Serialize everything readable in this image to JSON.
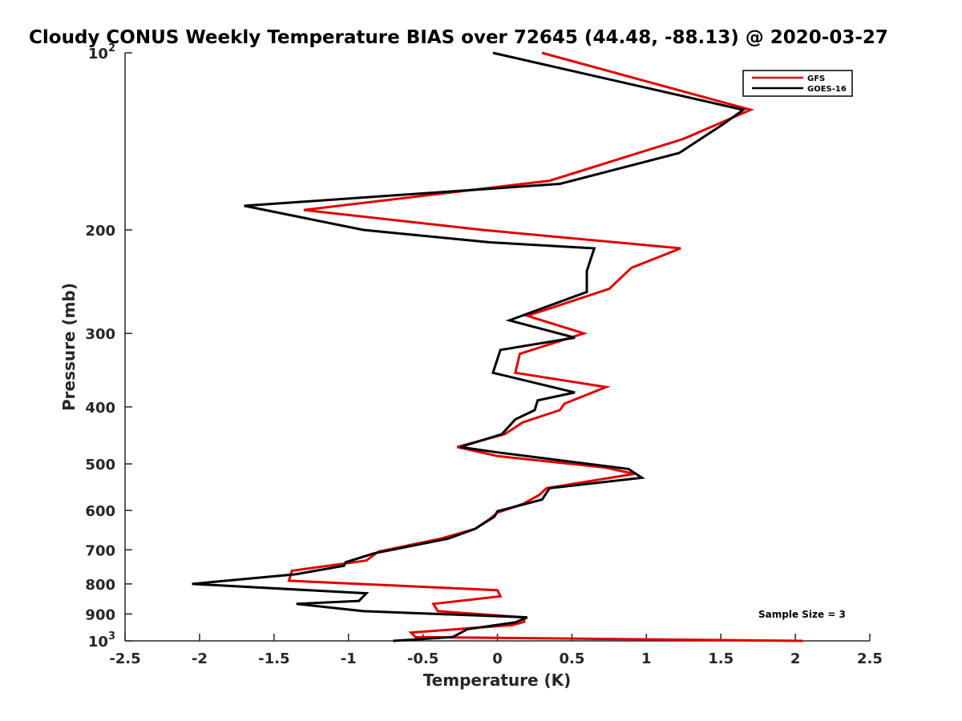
{
  "chart_data": {
    "type": "line",
    "title": "Cloudy CONUS Weekly Temperature BIAS over 72645 (44.48, -88.13) @ 2020-03-27",
    "xlabel": "Temperature (K)",
    "ylabel": "Pressure (mb)",
    "xlim": [
      -2.5,
      2.5
    ],
    "ylim": [
      100,
      1000
    ],
    "yscale": "log",
    "y_reversed": true,
    "grid": false,
    "legend_placement": "top-right",
    "x_ticks": [
      "-2.5",
      "-2",
      "-1.5",
      "-1",
      "-0.5",
      "0",
      "0.5",
      "1",
      "1.5",
      "2",
      "2.5"
    ],
    "y_ticks": [
      {
        "value": 100,
        "label": "10",
        "sup": "2"
      },
      {
        "value": 200,
        "label": "200",
        "sup": ""
      },
      {
        "value": 300,
        "label": "300",
        "sup": ""
      },
      {
        "value": 400,
        "label": "400",
        "sup": ""
      },
      {
        "value": 500,
        "label": "500",
        "sup": ""
      },
      {
        "value": 600,
        "label": "600",
        "sup": ""
      },
      {
        "value": 700,
        "label": "700",
        "sup": ""
      },
      {
        "value": 800,
        "label": "800",
        "sup": ""
      },
      {
        "value": 900,
        "label": "900",
        "sup": ""
      },
      {
        "value": 1000,
        "label": "10",
        "sup": "3"
      }
    ],
    "series": [
      {
        "name": "GFS",
        "color": "#e00000",
        "points": [
          [
            0.3,
            100
          ],
          [
            1.7,
            125
          ],
          [
            1.25,
            140
          ],
          [
            0.35,
            165
          ],
          [
            -1.3,
            185
          ],
          [
            -0.1,
            200
          ],
          [
            1.23,
            215
          ],
          [
            0.9,
            232
          ],
          [
            0.75,
            252
          ],
          [
            0.2,
            280
          ],
          [
            0.58,
            300
          ],
          [
            0.15,
            325
          ],
          [
            0.12,
            350
          ],
          [
            0.73,
            370
          ],
          [
            0.45,
            395
          ],
          [
            0.42,
            405
          ],
          [
            0.17,
            425
          ],
          [
            0.05,
            445
          ],
          [
            -0.27,
            468
          ],
          [
            0.0,
            485
          ],
          [
            0.72,
            507
          ],
          [
            0.92,
            520
          ],
          [
            0.33,
            550
          ],
          [
            0.28,
            565
          ],
          [
            0.17,
            585
          ],
          [
            0.0,
            605
          ],
          [
            -0.05,
            620
          ],
          [
            -0.15,
            645
          ],
          [
            -0.38,
            670
          ],
          [
            -0.8,
            705
          ],
          [
            -0.88,
            730
          ],
          [
            -1.38,
            760
          ],
          [
            -1.4,
            790
          ],
          [
            0.0,
            820
          ],
          [
            0.02,
            840
          ],
          [
            -0.43,
            865
          ],
          [
            -0.4,
            890
          ],
          [
            0.18,
            912
          ],
          [
            0.18,
            928
          ],
          [
            0.1,
            940
          ],
          [
            -0.58,
            968
          ],
          [
            -0.55,
            985
          ],
          [
            2.05,
            1000
          ]
        ]
      },
      {
        "name": "GOES-16",
        "color": "#000000",
        "points": [
          [
            -0.03,
            100
          ],
          [
            1.65,
            125
          ],
          [
            1.52,
            132
          ],
          [
            1.22,
            148
          ],
          [
            0.42,
            167
          ],
          [
            -1.7,
            182
          ],
          [
            -0.9,
            200
          ],
          [
            -0.05,
            210
          ],
          [
            0.65,
            215
          ],
          [
            0.6,
            235
          ],
          [
            0.6,
            255
          ],
          [
            0.08,
            285
          ],
          [
            0.52,
            305
          ],
          [
            0.02,
            320
          ],
          [
            -0.03,
            350
          ],
          [
            0.52,
            378
          ],
          [
            0.27,
            390
          ],
          [
            0.25,
            405
          ],
          [
            0.12,
            420
          ],
          [
            0.03,
            445
          ],
          [
            -0.25,
            468
          ],
          [
            0.0,
            478
          ],
          [
            0.88,
            510
          ],
          [
            0.97,
            528
          ],
          [
            0.35,
            550
          ],
          [
            0.3,
            575
          ],
          [
            0.0,
            602
          ],
          [
            -0.02,
            615
          ],
          [
            -0.15,
            645
          ],
          [
            -0.33,
            670
          ],
          [
            -0.83,
            710
          ],
          [
            -1.02,
            735
          ],
          [
            -1.03,
            745
          ],
          [
            -1.35,
            770
          ],
          [
            -2.05,
            800
          ],
          [
            -0.88,
            830
          ],
          [
            -0.93,
            855
          ],
          [
            -1.35,
            865
          ],
          [
            -0.9,
            890
          ],
          [
            0.2,
            912
          ],
          [
            0.12,
            930
          ],
          [
            -0.2,
            955
          ],
          [
            -0.3,
            985
          ],
          [
            -0.7,
            1000
          ]
        ]
      }
    ],
    "annotations": [
      {
        "text": "Sample Size = 3",
        "position": "bottom-right"
      }
    ]
  }
}
